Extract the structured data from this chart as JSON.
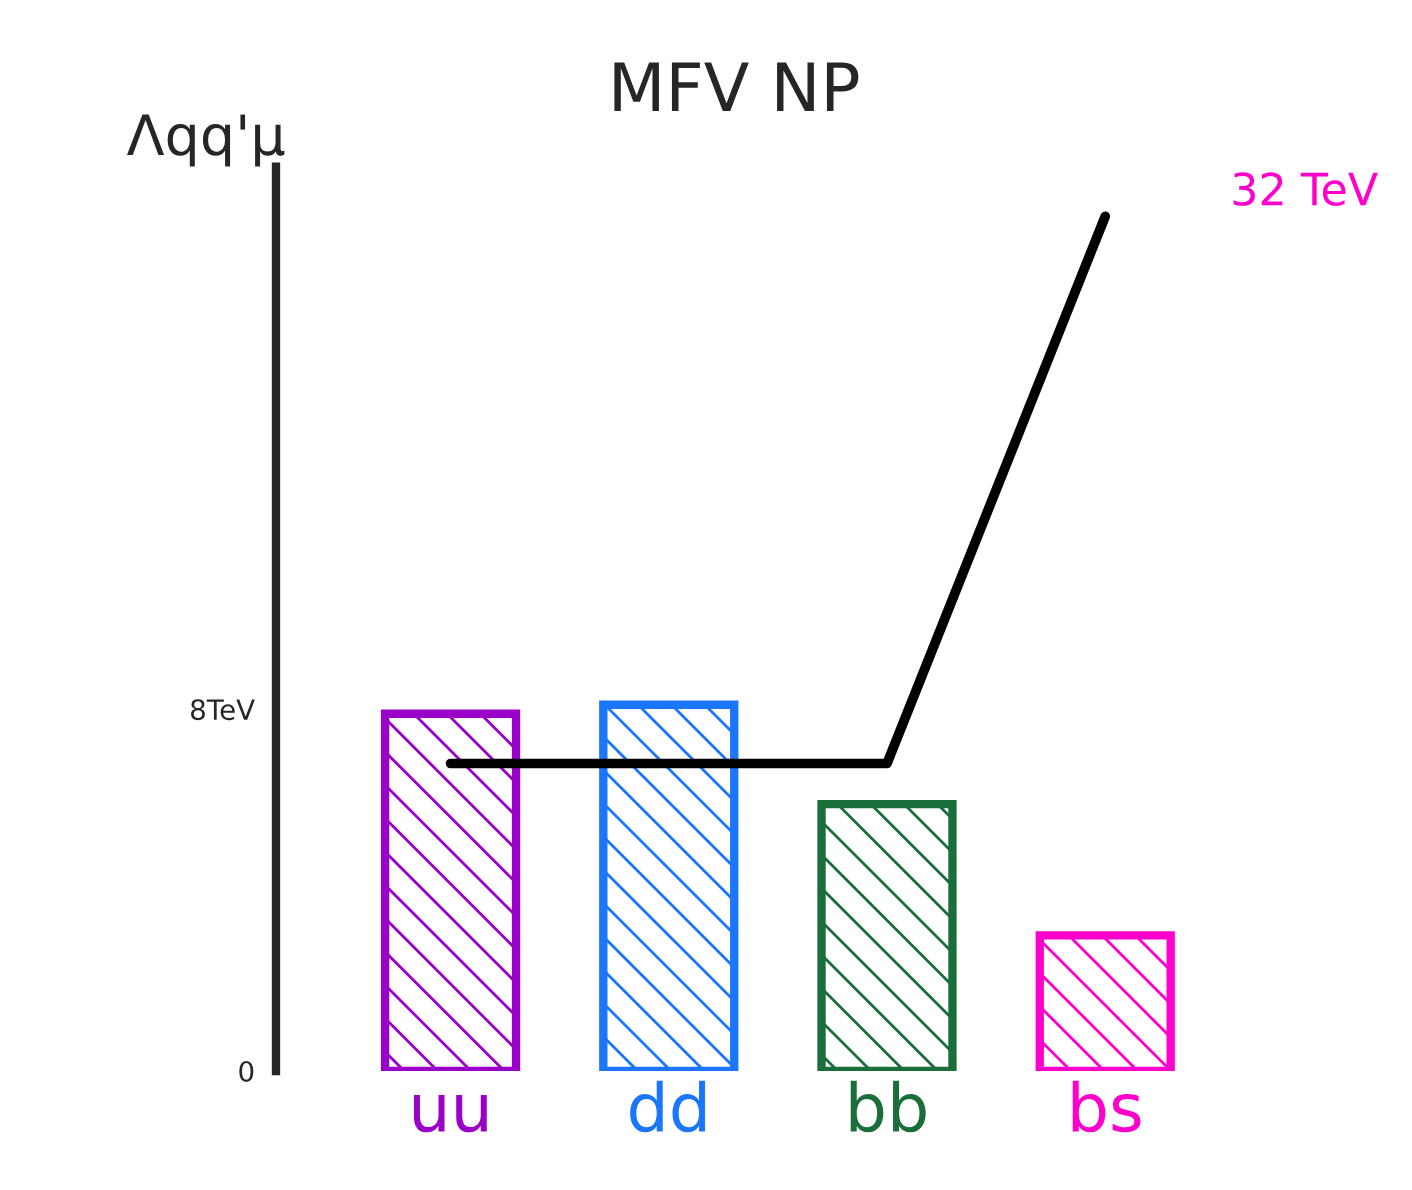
{
  "chart_data": {
    "type": "bar",
    "title": "MFV NP",
    "ylabel": "Λqq'μ",
    "categories": [
      "uu",
      "dd",
      "bb",
      "bs"
    ],
    "series": [
      {
        "colors": [
          "#9b00c8",
          "#1a75ff",
          "#1a6e3a",
          "#ff00cc"
        ],
        "values": [
          7.9,
          8.1,
          5.9,
          3.0
        ]
      },
      {
        "type": "line",
        "color": "#000000",
        "values": [
          6.8,
          6.8,
          6.8,
          18.9
        ]
      }
    ],
    "ylim": [
      0,
      20
    ],
    "yticks": [
      0,
      {
        "value": 8,
        "label": "8TeV"
      }
    ],
    "annotations": [
      {
        "text": "32 TeV",
        "x": "bs",
        "y": 18.9
      }
    ],
    "grid": false,
    "legend": false
  }
}
